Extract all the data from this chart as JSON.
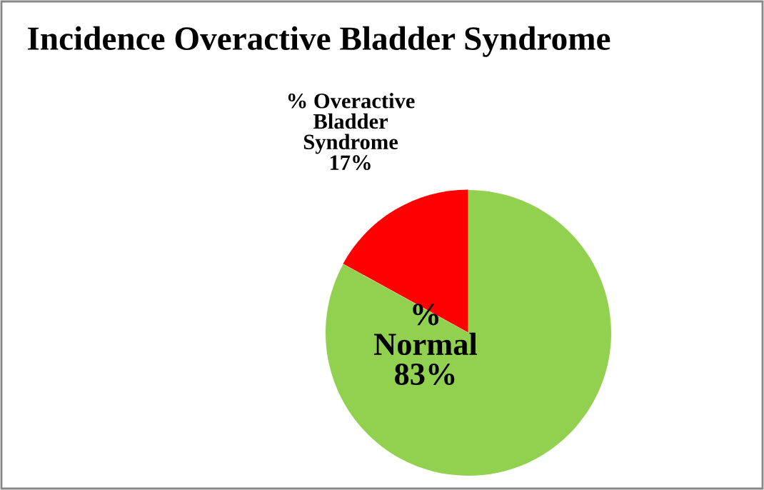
{
  "chart_data": {
    "type": "pie",
    "title": "Incidence Overactive Bladder Syndrome",
    "categories": [
      "% Overactive Bladder Syndrome",
      "% Normal"
    ],
    "values": [
      17,
      83
    ],
    "colors": [
      "#ff0000",
      "#92d050"
    ],
    "value_labels": [
      "17%",
      "83%"
    ],
    "legend": false
  }
}
